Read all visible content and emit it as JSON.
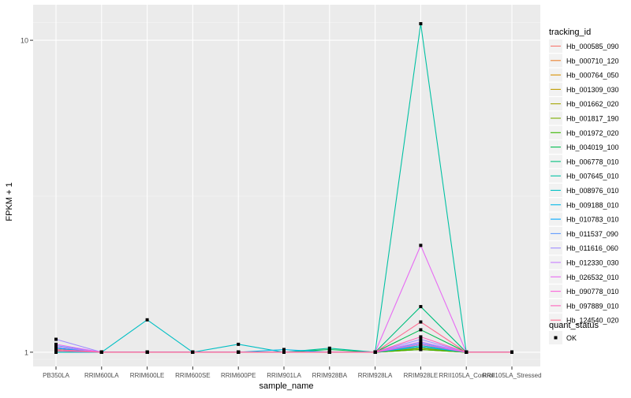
{
  "chart_data": {
    "type": "line",
    "xlabel": "sample_name",
    "ylabel": "FPKM + 1",
    "scale_y": "log10",
    "ylim": [
      0.9,
      13
    ],
    "y_ticks": [
      1,
      10
    ],
    "y_tick_labels": [
      "1",
      "10"
    ],
    "grid": true,
    "legend_position": "right",
    "categories": [
      "PB350LA",
      "RRIM600LA",
      "RRIM600LE",
      "RRIM600SE",
      "RRIM600PE",
      "RRIM901LA",
      "RRIM928BA",
      "RRIM928LA",
      "RRIM928LE",
      "RRII105LA_Control",
      "RRII105LA_Stressed"
    ],
    "legend_title": "tracking_id",
    "series": [
      {
        "name": "Hb_000585_090",
        "color": "#F8766D",
        "values": [
          1.02,
          1.0,
          1.0,
          1.0,
          1.0,
          1.0,
          1.0,
          1.0,
          1.05,
          1.0,
          1.0
        ]
      },
      {
        "name": "Hb_000710_120",
        "color": "#EA8331",
        "values": [
          1.01,
          1.0,
          1.0,
          1.0,
          1.0,
          1.0,
          1.0,
          1.0,
          1.02,
          1.0,
          1.0
        ]
      },
      {
        "name": "Hb_000764_050",
        "color": "#D89000",
        "values": [
          1.03,
          1.0,
          1.0,
          1.0,
          1.0,
          1.0,
          1.0,
          1.0,
          1.03,
          1.0,
          1.0
        ]
      },
      {
        "name": "Hb_001309_030",
        "color": "#C09B00",
        "values": [
          1.0,
          1.0,
          1.0,
          1.0,
          1.0,
          1.0,
          1.0,
          1.0,
          1.02,
          1.0,
          1.0
        ]
      },
      {
        "name": "Hb_001662_020",
        "color": "#A3A500",
        "values": [
          1.02,
          1.0,
          1.0,
          1.0,
          1.0,
          1.0,
          1.0,
          1.0,
          1.04,
          1.0,
          1.0
        ]
      },
      {
        "name": "Hb_001817_190",
        "color": "#7CAE00",
        "values": [
          1.01,
          1.0,
          1.0,
          1.0,
          1.0,
          1.0,
          1.0,
          1.0,
          1.03,
          1.0,
          1.0
        ]
      },
      {
        "name": "Hb_001972_020",
        "color": "#39B600",
        "values": [
          1.02,
          1.0,
          1.0,
          1.0,
          1.0,
          1.0,
          1.0,
          1.0,
          1.02,
          1.0,
          1.0
        ]
      },
      {
        "name": "Hb_004019_100",
        "color": "#00BB4E",
        "values": [
          1.03,
          1.0,
          1.0,
          1.0,
          1.0,
          1.0,
          1.02,
          1.0,
          1.18,
          1.0,
          1.0
        ]
      },
      {
        "name": "Hb_006778_010",
        "color": "#00BF7D",
        "values": [
          1.02,
          1.0,
          1.0,
          1.0,
          1.0,
          1.0,
          1.0,
          1.0,
          1.4,
          1.0,
          1.0
        ]
      },
      {
        "name": "Hb_007645_010",
        "color": "#00C1A3",
        "values": [
          1.0,
          1.0,
          1.0,
          1.0,
          1.0,
          1.0,
          1.03,
          1.0,
          11.3,
          1.0,
          1.0
        ]
      },
      {
        "name": "Hb_008976_010",
        "color": "#00BFC4",
        "values": [
          1.0,
          1.0,
          1.27,
          1.0,
          1.06,
          1.0,
          1.0,
          1.0,
          1.05,
          1.0,
          1.0
        ]
      },
      {
        "name": "Hb_009188_010",
        "color": "#00B8E7",
        "values": [
          1.02,
          1.0,
          1.0,
          1.0,
          1.0,
          1.02,
          1.0,
          1.0,
          1.04,
          1.0,
          1.0
        ]
      },
      {
        "name": "Hb_010783_010",
        "color": "#00A9FF",
        "values": [
          1.03,
          1.0,
          1.0,
          1.0,
          1.0,
          1.0,
          1.0,
          1.0,
          1.06,
          1.0,
          1.0
        ]
      },
      {
        "name": "Hb_011537_090",
        "color": "#619CFF",
        "values": [
          1.05,
          1.0,
          1.0,
          1.0,
          1.0,
          1.0,
          1.0,
          1.0,
          1.07,
          1.0,
          1.0
        ]
      },
      {
        "name": "Hb_011616_060",
        "color": "#9F8CFF",
        "values": [
          1.1,
          1.0,
          1.0,
          1.0,
          1.0,
          1.0,
          1.0,
          1.0,
          1.1,
          1.0,
          1.0
        ]
      },
      {
        "name": "Hb_012330_030",
        "color": "#C77CFF",
        "values": [
          1.04,
          1.0,
          1.0,
          1.0,
          1.0,
          1.0,
          1.0,
          1.0,
          1.08,
          1.0,
          1.0
        ]
      },
      {
        "name": "Hb_026532_010",
        "color": "#E76BF3",
        "values": [
          1.06,
          1.0,
          1.0,
          1.0,
          1.0,
          1.0,
          1.0,
          1.0,
          2.2,
          1.0,
          1.0
        ]
      },
      {
        "name": "Hb_090778_010",
        "color": "#FA62DB",
        "values": [
          1.02,
          1.0,
          1.0,
          1.0,
          1.0,
          1.0,
          1.0,
          1.0,
          1.06,
          1.0,
          1.0
        ]
      },
      {
        "name": "Hb_097889_010",
        "color": "#FF62BC",
        "values": [
          1.01,
          1.0,
          1.0,
          1.0,
          1.0,
          1.0,
          1.0,
          1.0,
          1.12,
          1.0,
          1.0
        ]
      },
      {
        "name": "Hb_124540_020",
        "color": "#FF6C91",
        "values": [
          1.02,
          1.0,
          1.0,
          1.0,
          1.0,
          1.0,
          1.0,
          1.0,
          1.25,
          1.0,
          1.0
        ]
      }
    ],
    "shape_legend": {
      "title": "quant_status",
      "items": [
        {
          "label": "OK",
          "shape": "square"
        }
      ]
    }
  }
}
